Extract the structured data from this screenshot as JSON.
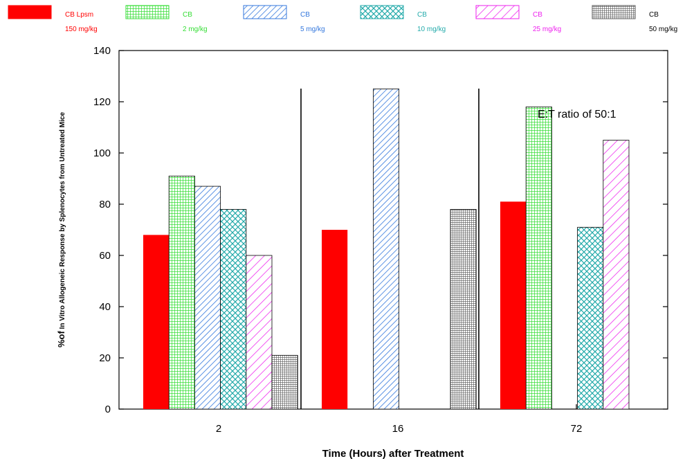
{
  "chart_data": {
    "type": "bar",
    "xlabel": "Time (Hours) after Treatment",
    "ylabel_prefix": "%of",
    "ylabel_rest": " In Vitro Allogeneic Response by Splenocytes from Untreated Mice",
    "ylim": [
      0,
      140
    ],
    "yticks": [
      0,
      20,
      40,
      60,
      80,
      100,
      120,
      140
    ],
    "categories": [
      "2",
      "16",
      "72"
    ],
    "series": [
      {
        "name": "CB Lpsm",
        "dose": "150 mg/kg",
        "color": "#ff0000",
        "pattern": "solid",
        "values": [
          68,
          70,
          81
        ]
      },
      {
        "name": "CB",
        "dose": "2 mg/kg",
        "color": "#33dd33",
        "pattern": "grid",
        "values": [
          91,
          null,
          118
        ]
      },
      {
        "name": "CB",
        "dose": "5 mg/kg",
        "color": "#3377dd",
        "pattern": "diagonal",
        "values": [
          87,
          125,
          null
        ]
      },
      {
        "name": "CB",
        "dose": "10 mg/kg",
        "color": "#22aaaa",
        "pattern": "crosshatch",
        "values": [
          78,
          null,
          71
        ]
      },
      {
        "name": "CB",
        "dose": "25 mg/kg",
        "color": "#ee22ee",
        "pattern": "diagonal-wide",
        "values": [
          60,
          null,
          105
        ]
      },
      {
        "name": "CB",
        "dose": "50 mg/kg",
        "color": "#555555",
        "pattern": "fine-grid",
        "values": [
          21,
          78,
          null
        ]
      }
    ],
    "annotation": "E:T ratio of 50:1",
    "grid": false,
    "legend_position": "top"
  }
}
